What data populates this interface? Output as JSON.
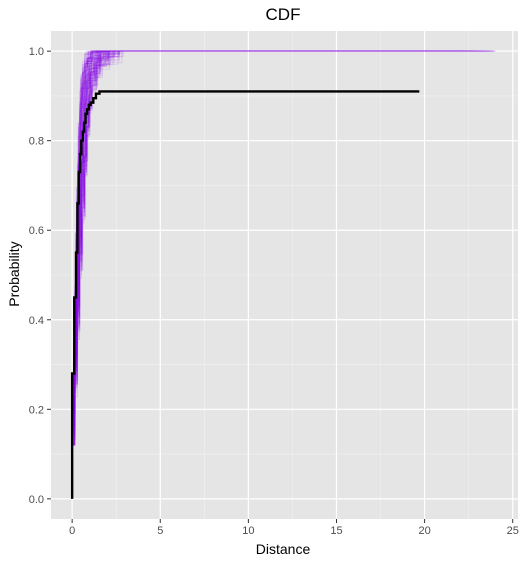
{
  "chart_data": {
    "type": "line",
    "title": "CDF",
    "xlabel": "Distance",
    "ylabel": "Probability",
    "xlim": [
      -1.2,
      25.3
    ],
    "ylim": [
      -0.045,
      1.045
    ],
    "x_ticks": [
      0,
      5,
      10,
      15,
      20,
      25
    ],
    "x_tick_labels": [
      "0",
      "5",
      "10",
      "15",
      "20",
      "25"
    ],
    "y_ticks": [
      0.0,
      0.2,
      0.4,
      0.6,
      0.8,
      1.0
    ],
    "y_tick_labels": [
      "0.0",
      "0.2",
      "0.4",
      "0.6",
      "0.8",
      "1.0"
    ],
    "grid": true,
    "background": "#e5e5e5",
    "legend": "none",
    "series": [
      {
        "style": "step",
        "color": "#000000",
        "x": [
          0.0,
          0.0,
          0.12,
          0.22,
          0.3,
          0.38,
          0.45,
          0.52,
          0.6,
          0.68,
          0.76,
          0.85,
          0.95,
          1.05,
          1.2,
          1.35,
          1.55,
          1.7,
          19.7
        ],
        "y": [
          0.0,
          0.28,
          0.45,
          0.55,
          0.66,
          0.73,
          0.77,
          0.8,
          0.82,
          0.84,
          0.86,
          0.87,
          0.88,
          0.885,
          0.895,
          0.905,
          0.91,
          0.91,
          0.91
        ]
      },
      {
        "style": "step-ensemble",
        "color": "#8a0ee8",
        "count": 120,
        "x_max_range": [
          18,
          24.1
        ],
        "y_end": 1.0,
        "x": [
          0.0,
          0.1,
          0.2,
          0.3,
          0.4,
          0.5,
          0.6,
          0.7,
          0.8,
          1.0,
          1.2,
          1.5,
          2.0,
          24.1
        ],
        "y": [
          0.18,
          0.3,
          0.42,
          0.55,
          0.66,
          0.75,
          0.83,
          0.89,
          0.93,
          0.96,
          0.98,
          0.99,
          1.0,
          1.0
        ]
      }
    ]
  }
}
